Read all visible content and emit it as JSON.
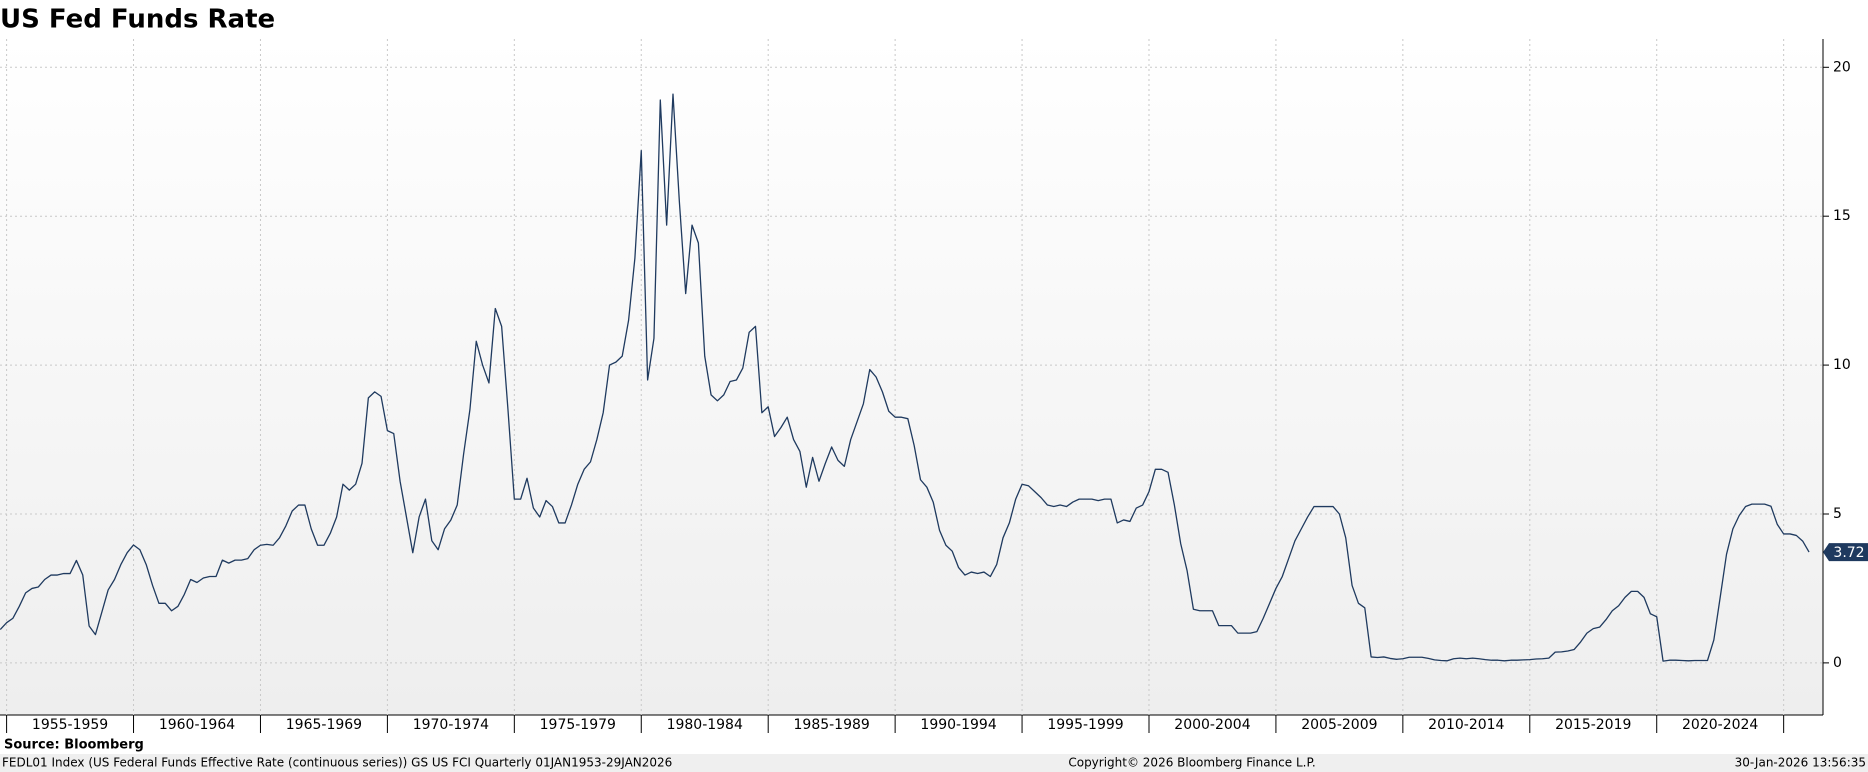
{
  "chart_data": {
    "type": "line",
    "title": "US Fed Funds Rate",
    "source": "Source:  Bloomberg",
    "description": "FEDL01 Index (US Federal Funds Effective Rate (continuous series)) GS US FCI Quarterly 01JAN1953-29JAN2026",
    "copyright": "Copyright© 2026 Bloomberg Finance L.P.",
    "timestamp": "30-Jan-2026 13:56:35",
    "xlim": [
      1954.74,
      2026.55
    ],
    "xticks": [
      {
        "value": 1955,
        "label": "1955-1959"
      },
      {
        "value": 1960,
        "label": "1960-1964"
      },
      {
        "value": 1965,
        "label": "1965-1969"
      },
      {
        "value": 1970,
        "label": "1970-1974"
      },
      {
        "value": 1975,
        "label": "1975-1979"
      },
      {
        "value": 1980,
        "label": "1980-1984"
      },
      {
        "value": 1985,
        "label": "1985-1989"
      },
      {
        "value": 1990,
        "label": "1990-1994"
      },
      {
        "value": 1995,
        "label": "1995-1999"
      },
      {
        "value": 2000,
        "label": "2000-2004"
      },
      {
        "value": 2005,
        "label": "2005-2009"
      },
      {
        "value": 2010,
        "label": "2010-2014"
      },
      {
        "value": 2015,
        "label": "2015-2019"
      },
      {
        "value": 2020,
        "label": "2020-2024"
      },
      {
        "value": 2025,
        "label": null
      }
    ],
    "ylim": [
      -1.75,
      20.95
    ],
    "yticks": [
      0,
      5,
      10,
      15,
      20
    ],
    "grid": true,
    "x": [
      1954.75,
      1955,
      1955.25,
      1955.5,
      1955.75,
      1956,
      1956.25,
      1956.5,
      1956.75,
      1957,
      1957.25,
      1957.5,
      1957.75,
      1958,
      1958.25,
      1958.5,
      1958.75,
      1959,
      1959.25,
      1959.5,
      1959.75,
      1960,
      1960.25,
      1960.5,
      1960.75,
      1961,
      1961.25,
      1961.5,
      1961.75,
      1962,
      1962.25,
      1962.5,
      1962.75,
      1963,
      1963.25,
      1963.5,
      1963.75,
      1964,
      1964.25,
      1964.5,
      1964.75,
      1965,
      1965.25,
      1965.5,
      1965.75,
      1966,
      1966.25,
      1966.5,
      1966.75,
      1967,
      1967.25,
      1967.5,
      1967.75,
      1968,
      1968.25,
      1968.5,
      1968.75,
      1969,
      1969.25,
      1969.5,
      1969.75,
      1970,
      1970.25,
      1970.5,
      1970.75,
      1971,
      1971.25,
      1971.5,
      1971.75,
      1972,
      1972.25,
      1972.5,
      1972.75,
      1973,
      1973.25,
      1973.5,
      1973.75,
      1974,
      1974.25,
      1974.5,
      1974.75,
      1975,
      1975.25,
      1975.5,
      1975.75,
      1976,
      1976.25,
      1976.5,
      1976.75,
      1977,
      1977.25,
      1977.5,
      1977.75,
      1978,
      1978.25,
      1978.5,
      1978.75,
      1979,
      1979.25,
      1979.5,
      1979.75,
      1980,
      1980.25,
      1980.5,
      1980.75,
      1981,
      1981.25,
      1981.5,
      1981.75,
      1982,
      1982.25,
      1982.5,
      1982.75,
      1983,
      1983.25,
      1983.5,
      1983.75,
      1984,
      1984.25,
      1984.5,
      1984.75,
      1985,
      1985.25,
      1985.5,
      1985.75,
      1986,
      1986.25,
      1986.5,
      1986.75,
      1987,
      1987.25,
      1987.5,
      1987.75,
      1988,
      1988.25,
      1988.5,
      1988.75,
      1989,
      1989.25,
      1989.5,
      1989.75,
      1990,
      1990.25,
      1990.5,
      1990.75,
      1991,
      1991.25,
      1991.5,
      1991.75,
      1992,
      1992.25,
      1992.5,
      1992.75,
      1993,
      1993.25,
      1993.5,
      1993.75,
      1994,
      1994.25,
      1994.5,
      1994.75,
      1995,
      1995.25,
      1995.5,
      1995.75,
      1996,
      1996.25,
      1996.5,
      1996.75,
      1997,
      1997.25,
      1997.5,
      1997.75,
      1998,
      1998.25,
      1998.5,
      1998.75,
      1999,
      1999.25,
      1999.5,
      1999.75,
      2000,
      2000.25,
      2000.5,
      2000.75,
      2001,
      2001.25,
      2001.5,
      2001.75,
      2002,
      2002.25,
      2002.5,
      2002.75,
      2003,
      2003.25,
      2003.5,
      2003.75,
      2004,
      2004.25,
      2004.5,
      2004.75,
      2005,
      2005.25,
      2005.5,
      2005.75,
      2006,
      2006.25,
      2006.5,
      2006.75,
      2007,
      2007.25,
      2007.5,
      2007.75,
      2008,
      2008.25,
      2008.5,
      2008.75,
      2009,
      2009.25,
      2009.5,
      2009.75,
      2010,
      2010.25,
      2010.5,
      2010.75,
      2011,
      2011.25,
      2011.5,
      2011.75,
      2012,
      2012.25,
      2012.5,
      2012.75,
      2013,
      2013.25,
      2013.5,
      2013.75,
      2014,
      2014.25,
      2014.5,
      2014.75,
      2015,
      2015.25,
      2015.5,
      2015.75,
      2016,
      2016.25,
      2016.5,
      2016.75,
      2017,
      2017.25,
      2017.5,
      2017.75,
      2018,
      2018.25,
      2018.5,
      2018.75,
      2019,
      2019.25,
      2019.5,
      2019.75,
      2020,
      2020.25,
      2020.5,
      2020.75,
      2021,
      2021.25,
      2021.5,
      2021.75,
      2022,
      2022.25,
      2022.5,
      2022.75,
      2023,
      2023.25,
      2023.5,
      2023.75,
      2024,
      2024.25,
      2024.5,
      2024.75,
      2025,
      2025.25,
      2025.5,
      2025.75,
      2026
    ],
    "series": [
      {
        "name": "US Federal Funds Effective Rate",
        "color": "#1f3a5f",
        "values": [
          1.12,
          1.35,
          1.5,
          1.9,
          2.35,
          2.5,
          2.55,
          2.8,
          2.95,
          2.95,
          3.0,
          3.0,
          3.44,
          2.95,
          1.24,
          0.95,
          1.7,
          2.45,
          2.8,
          3.3,
          3.7,
          3.96,
          3.8,
          3.3,
          2.6,
          2.0,
          2.0,
          1.75,
          1.9,
          2.3,
          2.8,
          2.7,
          2.85,
          2.9,
          2.9,
          3.45,
          3.35,
          3.45,
          3.45,
          3.5,
          3.8,
          3.95,
          3.98,
          3.95,
          4.2,
          4.6,
          5.1,
          5.3,
          5.3,
          4.5,
          3.95,
          3.95,
          4.35,
          4.9,
          6.0,
          5.8,
          6.0,
          6.7,
          8.9,
          9.1,
          8.95,
          7.8,
          7.7,
          6.1,
          4.9,
          3.7,
          4.9,
          5.5,
          4.1,
          3.8,
          4.5,
          4.8,
          5.3,
          7.0,
          8.5,
          10.8,
          10.0,
          9.4,
          11.9,
          11.3,
          8.5,
          5.5,
          5.5,
          6.2,
          5.2,
          4.9,
          5.45,
          5.25,
          4.7,
          4.7,
          5.3,
          6.0,
          6.5,
          6.75,
          7.5,
          8.4,
          10.0,
          10.1,
          10.3,
          11.5,
          13.6,
          17.2,
          9.5,
          10.9,
          18.9,
          14.7,
          19.1,
          15.5,
          12.4,
          14.7,
          14.1,
          10.3,
          9.0,
          8.8,
          9.0,
          9.45,
          9.5,
          9.9,
          11.1,
          11.3,
          8.4,
          8.6,
          7.6,
          7.9,
          8.25,
          7.5,
          7.1,
          5.9,
          6.9,
          6.1,
          6.7,
          7.25,
          6.8,
          6.6,
          7.5,
          8.1,
          8.7,
          9.85,
          9.6,
          9.1,
          8.45,
          8.25,
          8.25,
          8.2,
          7.3,
          6.15,
          5.9,
          5.4,
          4.45,
          3.95,
          3.75,
          3.2,
          2.95,
          3.05,
          3.0,
          3.05,
          2.9,
          3.3,
          4.2,
          4.7,
          5.5,
          6.0,
          5.95,
          5.75,
          5.55,
          5.3,
          5.25,
          5.3,
          5.25,
          5.4,
          5.5,
          5.5,
          5.5,
          5.45,
          5.5,
          5.5,
          4.7,
          4.8,
          4.75,
          5.2,
          5.3,
          5.75,
          6.5,
          6.5,
          6.4,
          5.3,
          4.0,
          3.1,
          1.8,
          1.75,
          1.75,
          1.75,
          1.25,
          1.25,
          1.25,
          1.0,
          1.0,
          1.0,
          1.05,
          1.5,
          2.0,
          2.5,
          2.9,
          3.5,
          4.1,
          4.5,
          4.9,
          5.25,
          5.25,
          5.25,
          5.25,
          5.0,
          4.2,
          2.6,
          2.0,
          1.85,
          0.2,
          0.18,
          0.2,
          0.15,
          0.12,
          0.14,
          0.19,
          0.19,
          0.19,
          0.15,
          0.1,
          0.08,
          0.07,
          0.14,
          0.16,
          0.14,
          0.16,
          0.14,
          0.11,
          0.09,
          0.09,
          0.07,
          0.09,
          0.09,
          0.1,
          0.11,
          0.13,
          0.14,
          0.16,
          0.36,
          0.37,
          0.4,
          0.45,
          0.7,
          1.0,
          1.15,
          1.2,
          1.45,
          1.75,
          1.92,
          2.2,
          2.4,
          2.4,
          2.2,
          1.65,
          1.55,
          0.06,
          0.09,
          0.09,
          0.08,
          0.07,
          0.08,
          0.08,
          0.08,
          0.77,
          2.2,
          3.65,
          4.5,
          4.95,
          5.25,
          5.33,
          5.33,
          5.33,
          5.26,
          4.65,
          4.33,
          4.33,
          4.28,
          4.09,
          3.72
        ]
      }
    ]
  }
}
